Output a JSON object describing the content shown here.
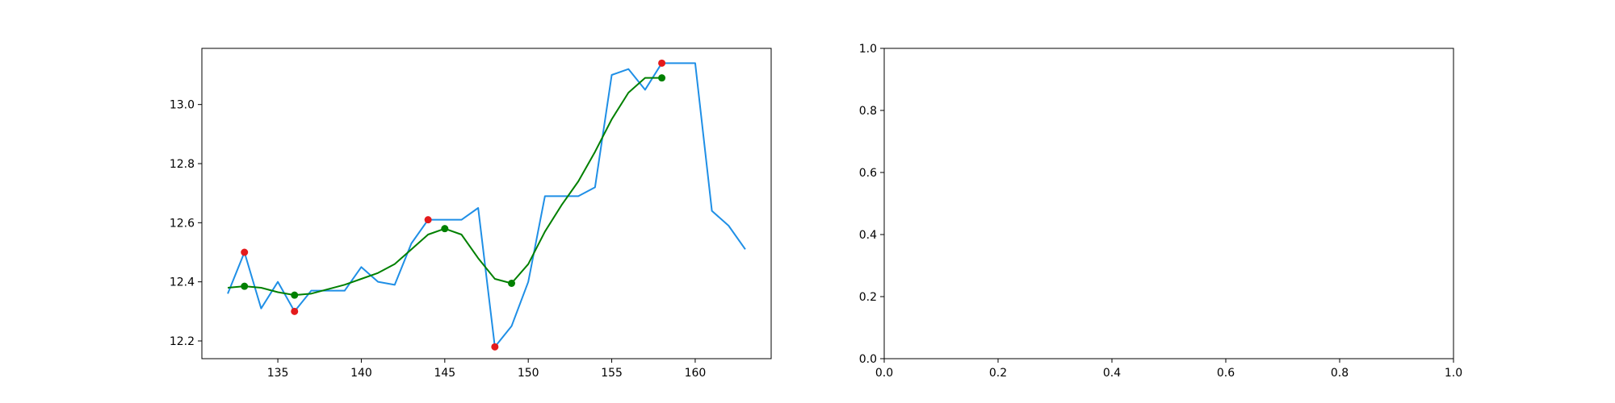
{
  "chart_data": [
    {
      "type": "line",
      "xlim": [
        130.45,
        164.55
      ],
      "ylim": [
        12.14,
        13.19
      ],
      "grid": false,
      "legend": "none",
      "x_ticks": [
        "135",
        "140",
        "145",
        "150",
        "155",
        "160"
      ],
      "y_ticks": [
        "12.2",
        "12.4",
        "12.6",
        "12.8",
        "13.0"
      ],
      "series": [
        {
          "color": "#1f8fe6",
          "x": [
            132,
            133,
            134,
            135,
            136,
            137,
            138,
            139,
            140,
            141,
            142,
            143,
            144,
            145,
            146,
            147,
            148,
            149,
            150,
            151,
            152,
            153,
            154,
            155,
            156,
            157,
            158,
            159,
            160,
            161,
            162,
            163
          ],
          "y": [
            12.36,
            12.5,
            12.31,
            12.4,
            12.3,
            12.37,
            12.37,
            12.37,
            12.45,
            12.4,
            12.39,
            12.53,
            12.61,
            12.61,
            12.61,
            12.65,
            12.18,
            12.25,
            12.4,
            12.69,
            12.69,
            12.69,
            12.72,
            13.1,
            13.12,
            13.05,
            13.14,
            13.14,
            13.14,
            12.64,
            12.59,
            12.51
          ]
        },
        {
          "color": "#008000",
          "x": [
            132,
            133,
            134,
            135,
            136,
            137,
            138,
            139,
            140,
            141,
            142,
            143,
            144,
            145,
            146,
            147,
            148,
            149,
            150,
            151,
            152,
            153,
            154,
            155,
            156,
            157,
            158
          ],
          "y": [
            12.38,
            12.385,
            12.38,
            12.365,
            12.355,
            12.36,
            12.375,
            12.39,
            12.41,
            12.43,
            12.46,
            12.51,
            12.56,
            12.58,
            12.56,
            12.48,
            12.41,
            12.395,
            12.46,
            12.57,
            12.66,
            12.74,
            12.84,
            12.95,
            13.04,
            13.09,
            13.09
          ]
        }
      ],
      "markers": [
        {
          "color": "#e41a1c",
          "x": [
            133,
            136,
            144,
            148,
            158
          ],
          "y": [
            12.5,
            12.3,
            12.61,
            12.18,
            13.14
          ]
        },
        {
          "color": "#008000",
          "x": [
            133,
            136,
            145,
            149,
            158
          ],
          "y": [
            12.385,
            12.355,
            12.58,
            12.395,
            13.09
          ]
        }
      ]
    },
    {
      "type": "line",
      "xlim": [
        0,
        1
      ],
      "ylim": [
        0,
        1
      ],
      "grid": false,
      "legend": "none",
      "x_ticks": [
        "0.0",
        "0.2",
        "0.4",
        "0.6",
        "0.8",
        "1.0"
      ],
      "y_ticks": [
        "0.0",
        "0.2",
        "0.4",
        "0.6",
        "0.8",
        "1.0"
      ],
      "series": [],
      "markers": []
    }
  ]
}
